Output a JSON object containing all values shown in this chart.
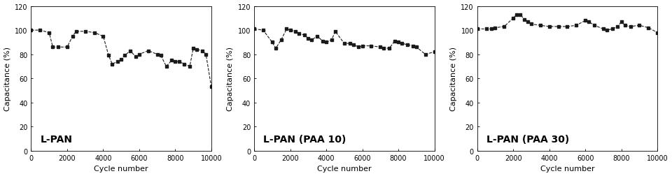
{
  "panel1": {
    "label": "L-PAN",
    "x": [
      0,
      500,
      1000,
      1200,
      1500,
      2000,
      2300,
      2500,
      3000,
      3500,
      4000,
      4300,
      4500,
      4800,
      5000,
      5200,
      5500,
      5800,
      6000,
      6500,
      7000,
      7200,
      7500,
      7800,
      8000,
      8200,
      8500,
      8800,
      9000,
      9200,
      9500,
      9700,
      10000
    ],
    "y": [
      100,
      100,
      98,
      86,
      86,
      86,
      95,
      99,
      99,
      98,
      95,
      79,
      72,
      74,
      76,
      79,
      83,
      78,
      80,
      83,
      80,
      79,
      70,
      75,
      74,
      74,
      72,
      70,
      85,
      84,
      83,
      80,
      53
    ]
  },
  "panel2": {
    "label": "L-PAN (PAA 10)",
    "x": [
      0,
      500,
      1000,
      1200,
      1500,
      1800,
      2000,
      2300,
      2500,
      2800,
      3000,
      3200,
      3500,
      3800,
      4000,
      4300,
      4500,
      5000,
      5300,
      5500,
      5800,
      6000,
      6500,
      7000,
      7200,
      7500,
      7800,
      8000,
      8200,
      8500,
      8800,
      9000,
      9500,
      10000
    ],
    "y": [
      101,
      100,
      90,
      85,
      92,
      101,
      100,
      99,
      97,
      96,
      93,
      92,
      95,
      91,
      90,
      92,
      99,
      89,
      89,
      88,
      86,
      87,
      87,
      86,
      85,
      85,
      91,
      90,
      89,
      88,
      87,
      86,
      80,
      82
    ]
  },
  "panel3": {
    "label": "L-PAN (PAA 30)",
    "x": [
      0,
      500,
      800,
      1000,
      1500,
      2000,
      2200,
      2400,
      2600,
      2800,
      3000,
      3500,
      4000,
      4500,
      5000,
      5500,
      6000,
      6200,
      6500,
      7000,
      7200,
      7500,
      7800,
      8000,
      8200,
      8500,
      9000,
      9500,
      10000
    ],
    "y": [
      101,
      101,
      101,
      102,
      103,
      110,
      113,
      113,
      109,
      107,
      105,
      104,
      103,
      103,
      103,
      104,
      108,
      107,
      104,
      101,
      100,
      101,
      103,
      107,
      104,
      103,
      104,
      102,
      98
    ]
  },
  "ylim": [
    0,
    120
  ],
  "xlim": [
    0,
    10000
  ],
  "yticks": [
    0,
    20,
    40,
    60,
    80,
    100,
    120
  ],
  "xticks": [
    0,
    2000,
    4000,
    6000,
    8000,
    10000
  ],
  "xtick_labels": [
    "0",
    "2000",
    "4000",
    "6000",
    "8000",
    "10000"
  ],
  "xlabel": "Cycle number",
  "ylabel": "Capacitance (%)",
  "marker": "s",
  "markersize": 3.5,
  "linewidth": 0.8,
  "color": "#1a1a1a",
  "label_fontsize": 10,
  "tick_fontsize": 7,
  "axis_fontsize": 8
}
